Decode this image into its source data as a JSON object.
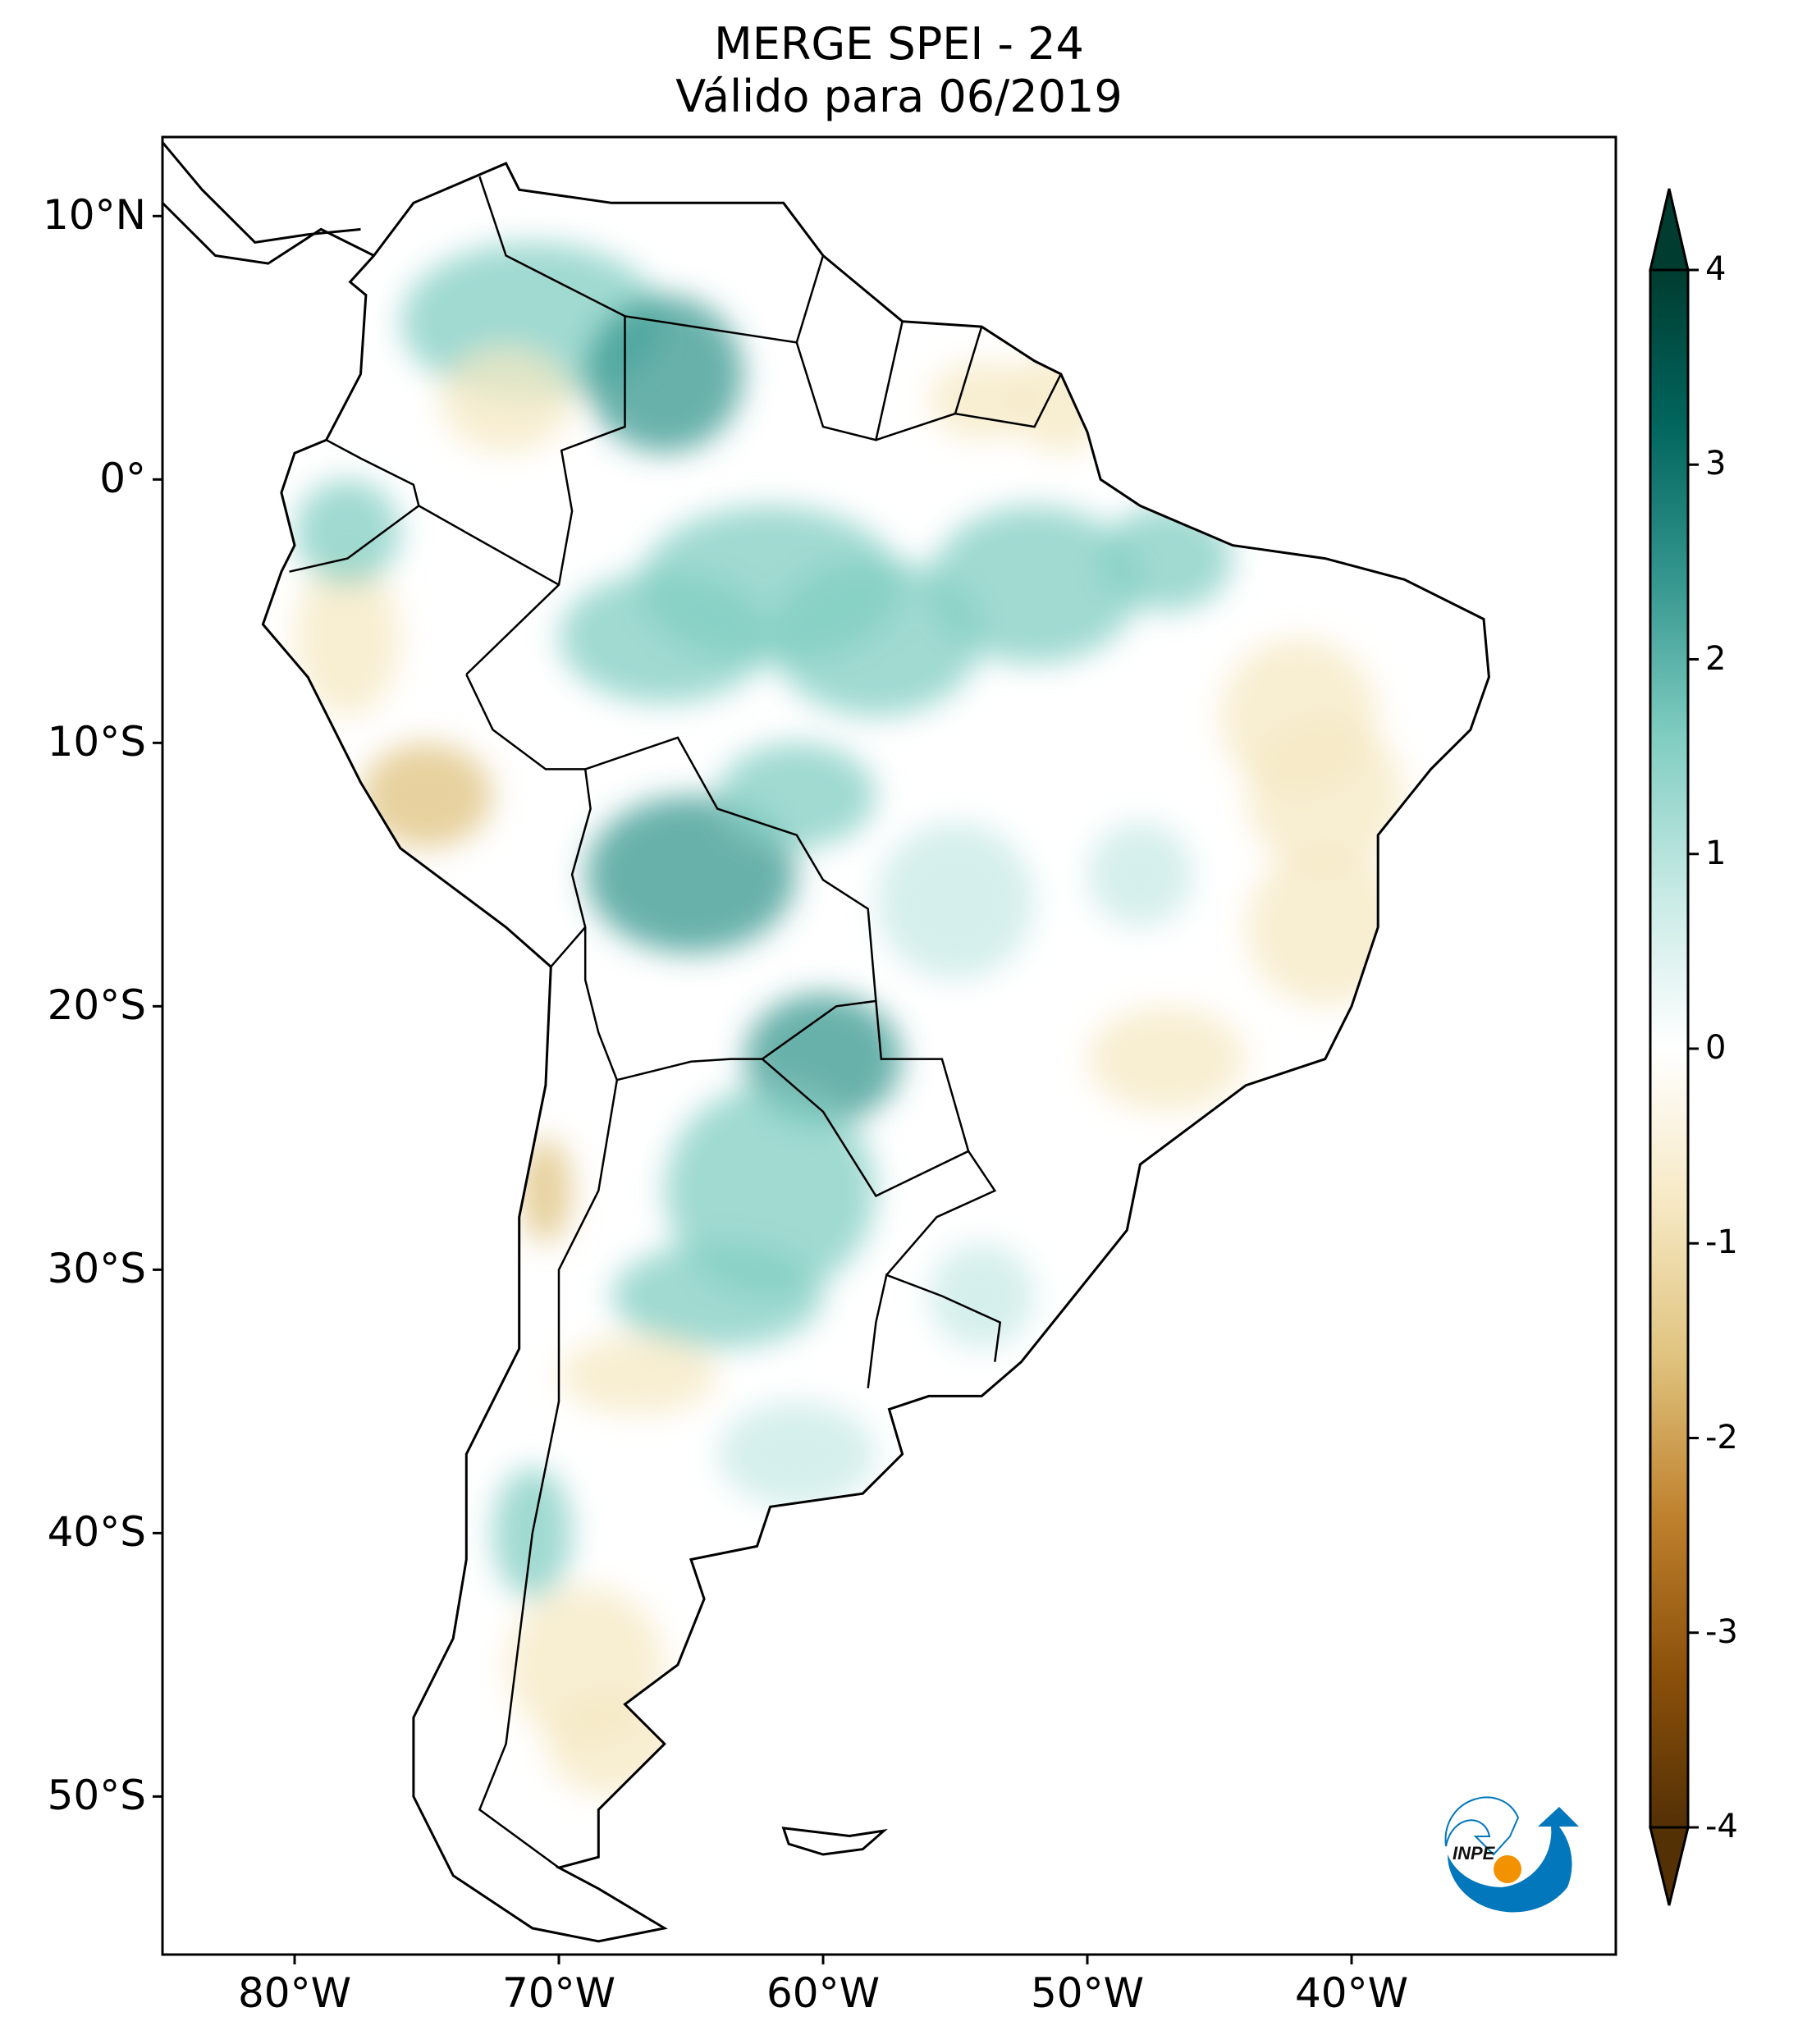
{
  "title": {
    "line1": "MERGE   SPEI - 24",
    "line2": "Válido para 06/2019"
  },
  "chart_data": {
    "type": "heatmap",
    "title": "MERGE   SPEI - 24 / Válido para 06/2019",
    "extent": {
      "lon": [
        -85,
        -30
      ],
      "lat": [
        -56,
        13
      ]
    },
    "x_ticks": [
      {
        "value": -80,
        "label": "80°W"
      },
      {
        "value": -70,
        "label": "70°W"
      },
      {
        "value": -60,
        "label": "60°W"
      },
      {
        "value": -50,
        "label": "50°W"
      },
      {
        "value": -40,
        "label": "40°W"
      }
    ],
    "y_ticks": [
      {
        "value": 10,
        "label": "10°N"
      },
      {
        "value": 0,
        "label": "0°"
      },
      {
        "value": -10,
        "label": "10°S"
      },
      {
        "value": -20,
        "label": "20°S"
      },
      {
        "value": -30,
        "label": "30°S"
      },
      {
        "value": -40,
        "label": "40°S"
      },
      {
        "value": -50,
        "label": "50°S"
      }
    ],
    "colorbar": {
      "range": [
        -4,
        4
      ],
      "ticks": [
        "4",
        "3",
        "2",
        "1",
        "0",
        "-1",
        "-2",
        "-3",
        "-4"
      ],
      "extend": "both",
      "colormap": "BrBG",
      "colors": [
        "#543005",
        "#8c510a",
        "#bf812d",
        "#dfc27d",
        "#f6e8c3",
        "#ffffff",
        "#c7eae5",
        "#80cdc1",
        "#35978f",
        "#01665e",
        "#003c30"
      ]
    }
  },
  "logo": {
    "text": "INPE",
    "colors": {
      "blue": "#0277bb",
      "orange": "#f39200"
    }
  }
}
